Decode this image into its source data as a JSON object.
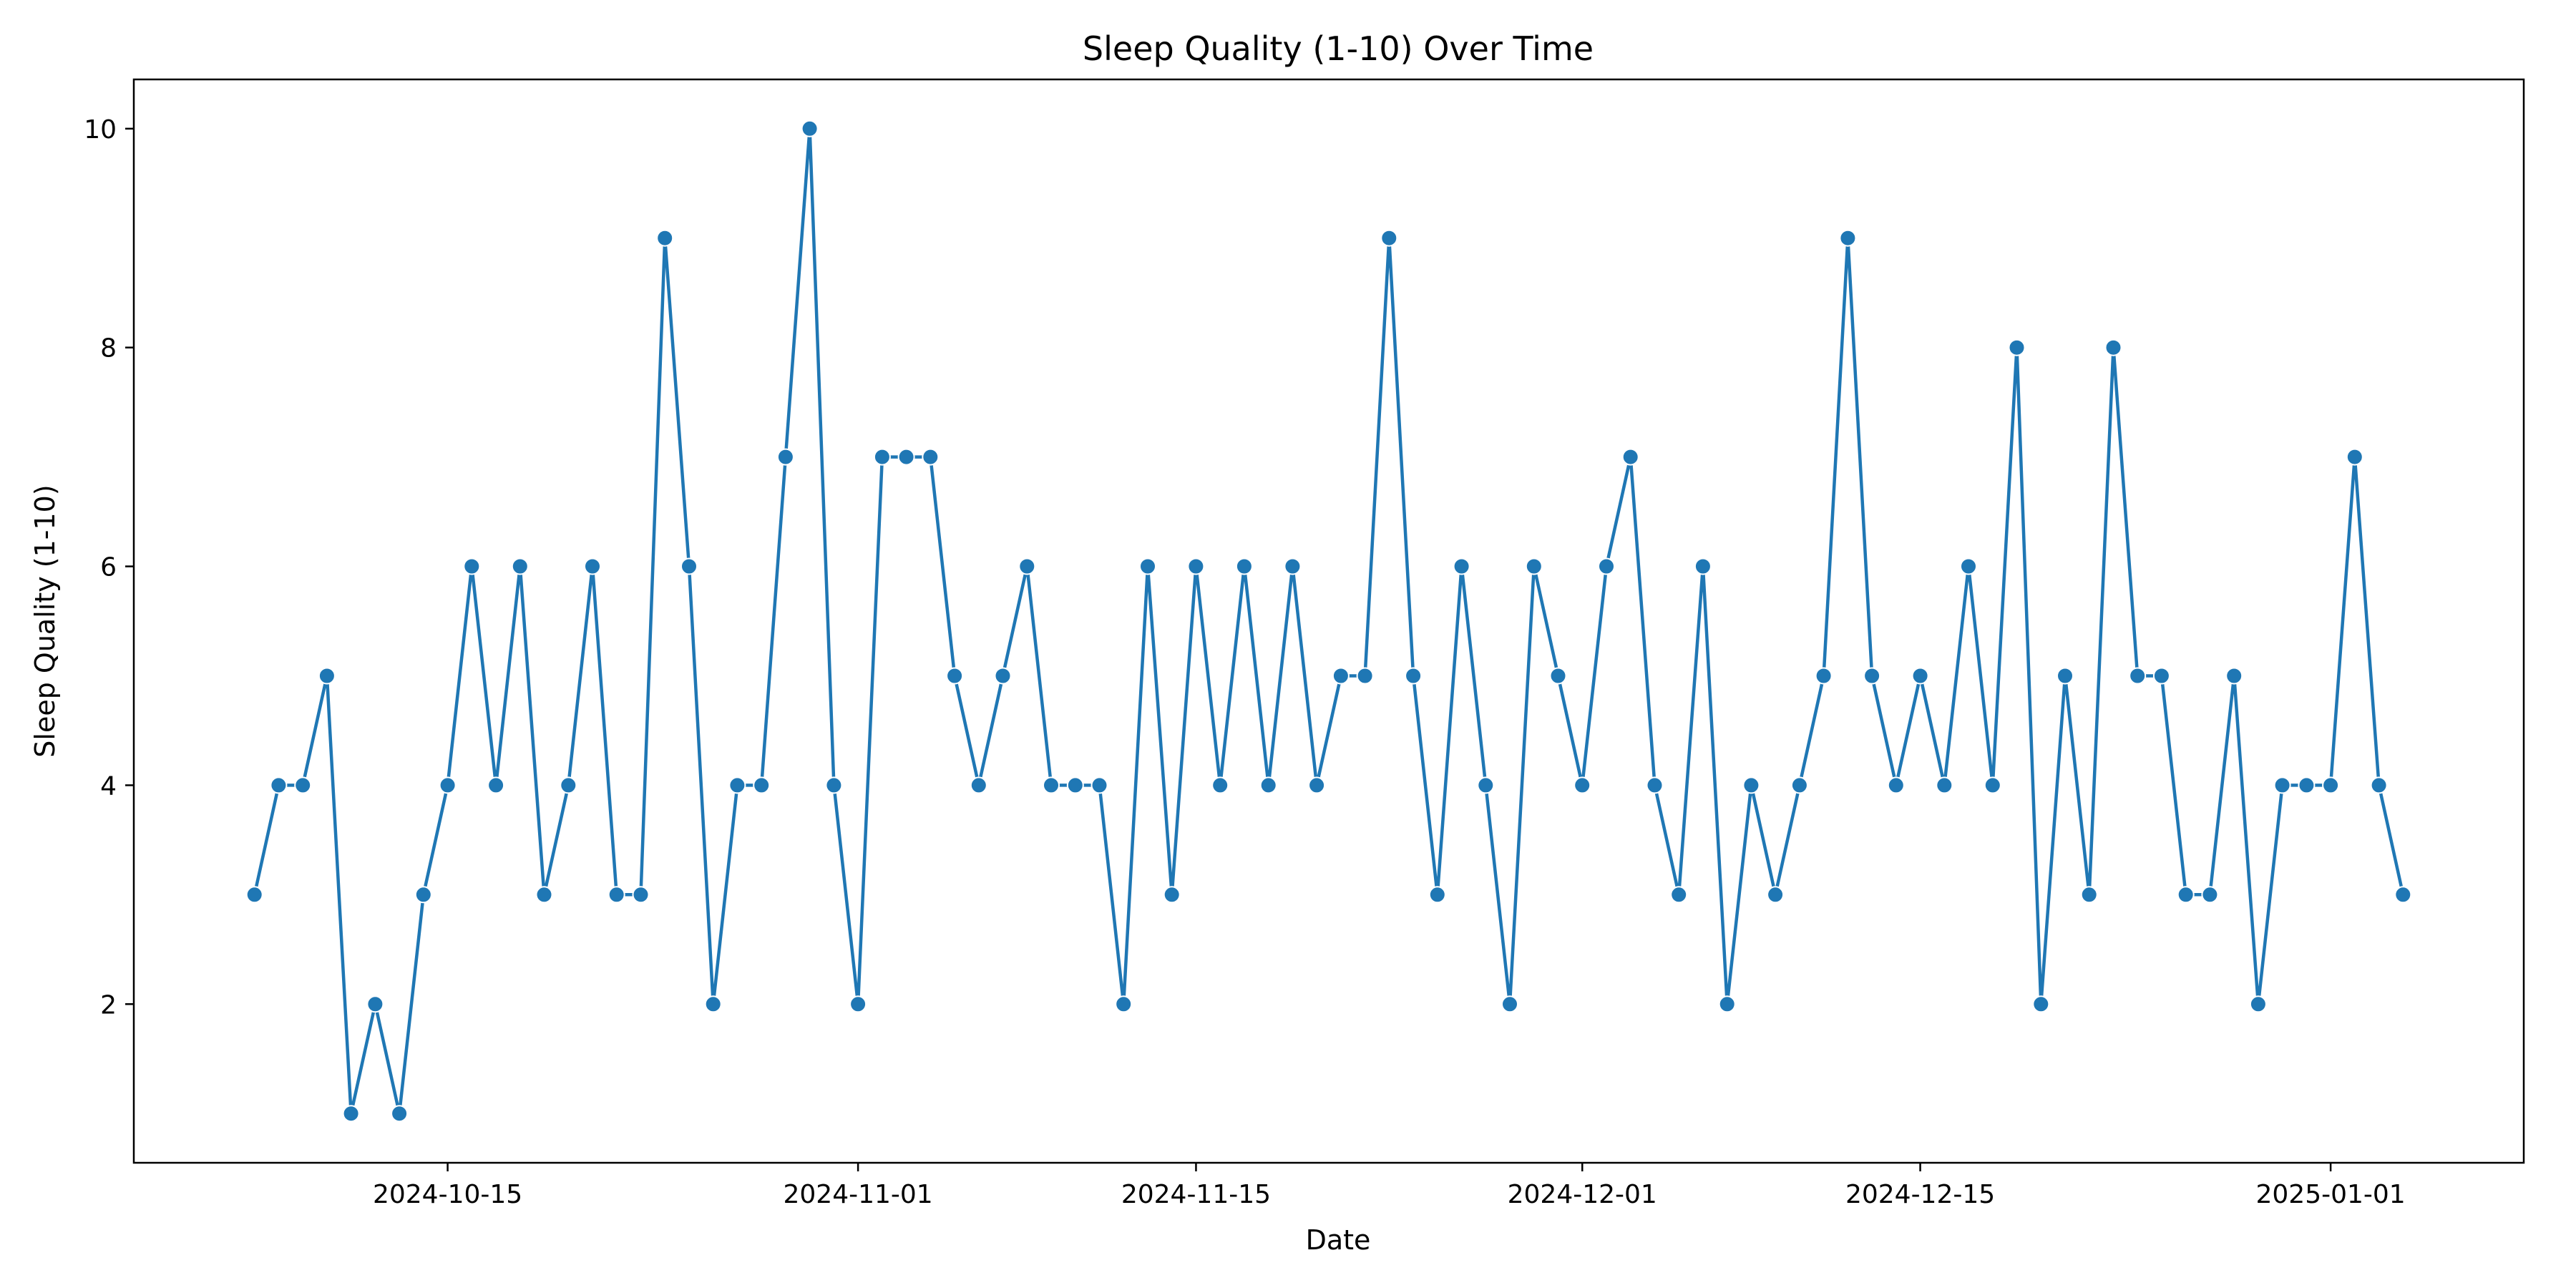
{
  "chart_data": {
    "type": "line",
    "title": "Sleep Quality (1-10) Over Time",
    "xlabel": "Date",
    "ylabel": "Sleep Quality (1-10)",
    "line_color": "#1f77b4",
    "marker": "circle",
    "grid": false,
    "legend": "none",
    "xlim": [
      "2024-10-02",
      "2025-01-09"
    ],
    "ylim": [
      0.55,
      10.45
    ],
    "x_ticks": [
      "2024-10-15",
      "2024-11-01",
      "2024-11-15",
      "2024-12-01",
      "2024-12-15",
      "2025-01-01"
    ],
    "y_ticks": [
      2,
      4,
      6,
      8,
      10
    ],
    "series": [
      {
        "x": [
          "2024-10-07",
          "2024-10-08",
          "2024-10-09",
          "2024-10-10",
          "2024-10-11",
          "2024-10-12",
          "2024-10-13",
          "2024-10-14",
          "2024-10-15",
          "2024-10-16",
          "2024-10-17",
          "2024-10-18",
          "2024-10-19",
          "2024-10-20",
          "2024-10-21",
          "2024-10-22",
          "2024-10-23",
          "2024-10-24",
          "2024-10-25",
          "2024-10-26",
          "2024-10-27",
          "2024-10-28",
          "2024-10-29",
          "2024-10-30",
          "2024-10-31",
          "2024-11-01",
          "2024-11-02",
          "2024-11-03",
          "2024-11-04",
          "2024-11-05",
          "2024-11-06",
          "2024-11-07",
          "2024-11-08",
          "2024-11-09",
          "2024-11-10",
          "2024-11-11",
          "2024-11-12",
          "2024-11-13",
          "2024-11-14",
          "2024-11-15",
          "2024-11-16",
          "2024-11-17",
          "2024-11-18",
          "2024-11-19",
          "2024-11-20",
          "2024-11-21",
          "2024-11-22",
          "2024-11-23",
          "2024-11-24",
          "2024-11-25",
          "2024-11-26",
          "2024-11-27",
          "2024-11-28",
          "2024-11-29",
          "2024-11-30",
          "2024-12-01",
          "2024-12-02",
          "2024-12-03",
          "2024-12-04",
          "2024-12-05",
          "2024-12-06",
          "2024-12-07",
          "2024-12-08",
          "2024-12-09",
          "2024-12-10",
          "2024-12-11",
          "2024-12-12",
          "2024-12-13",
          "2024-12-14",
          "2024-12-15",
          "2024-12-16",
          "2024-12-17",
          "2024-12-18",
          "2024-12-19",
          "2024-12-20",
          "2024-12-21",
          "2024-12-22",
          "2024-12-23",
          "2024-12-24",
          "2024-12-25",
          "2024-12-26",
          "2024-12-27",
          "2024-12-28",
          "2024-12-29",
          "2024-12-30",
          "2024-12-31",
          "2025-01-01",
          "2025-01-02",
          "2025-01-03",
          "2025-01-04"
        ],
        "y": [
          3,
          4,
          4,
          5,
          1,
          2,
          1,
          3,
          4,
          6,
          4,
          6,
          3,
          4,
          6,
          3,
          3,
          9,
          6,
          2,
          4,
          4,
          7,
          10,
          4,
          2,
          7,
          7,
          7,
          5,
          4,
          5,
          6,
          4,
          4,
          4,
          2,
          6,
          3,
          6,
          4,
          6,
          4,
          6,
          4,
          5,
          5,
          9,
          5,
          3,
          6,
          4,
          2,
          6,
          5,
          4,
          6,
          7,
          4,
          3,
          6,
          2,
          4,
          3,
          4,
          5,
          9,
          5,
          4,
          5,
          4,
          6,
          4,
          8,
          2,
          5,
          3,
          8,
          5,
          5,
          3,
          3,
          5,
          2,
          4,
          4,
          4,
          7,
          4,
          3
        ]
      }
    ]
  }
}
